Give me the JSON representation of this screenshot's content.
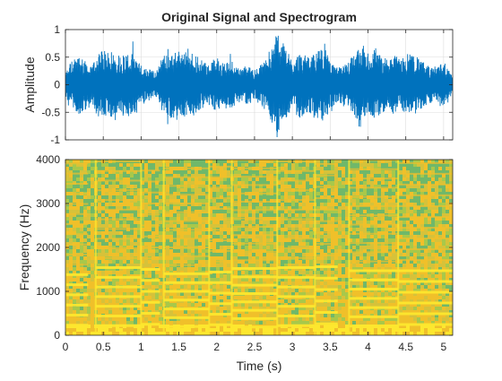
{
  "figure": {
    "title": "Original Signal and Spectrogram"
  },
  "chart_data": [
    {
      "type": "line",
      "title": "Original Signal and Spectrogram",
      "xlabel": "",
      "ylabel": "Amplitude",
      "xlim": [
        0,
        5.12
      ],
      "ylim": [
        -1,
        1
      ],
      "yticks": [
        -1,
        -0.5,
        0,
        0.5,
        1
      ],
      "ytick_labels": [
        "-1",
        "-0.5",
        "0",
        "0.5",
        "1"
      ],
      "grid": true,
      "line_color": "#0072BD",
      "envelope": {
        "t": [
          0.0,
          0.05,
          0.1,
          0.2,
          0.3,
          0.35,
          0.4,
          0.5,
          0.6,
          0.7,
          0.8,
          0.9,
          1.0,
          1.1,
          1.2,
          1.3,
          1.4,
          1.5,
          1.6,
          1.7,
          1.8,
          1.9,
          2.0,
          2.1,
          2.2,
          2.3,
          2.4,
          2.5,
          2.6,
          2.7,
          2.8,
          2.9,
          3.0,
          3.1,
          3.2,
          3.3,
          3.4,
          3.5,
          3.6,
          3.7,
          3.8,
          3.9,
          4.0,
          4.1,
          4.2,
          4.3,
          4.4,
          4.5,
          4.6,
          4.7,
          4.8,
          4.9,
          5.0,
          5.1
        ],
        "peak": [
          0.2,
          0.4,
          0.45,
          0.55,
          0.4,
          0.3,
          0.55,
          0.62,
          0.6,
          0.55,
          0.58,
          0.55,
          0.35,
          0.3,
          0.25,
          0.55,
          0.6,
          0.62,
          0.6,
          0.55,
          0.45,
          0.35,
          0.5,
          0.4,
          0.45,
          0.3,
          0.35,
          0.25,
          0.4,
          0.55,
          0.95,
          0.7,
          0.45,
          0.6,
          0.5,
          0.55,
          0.75,
          0.45,
          0.3,
          0.4,
          0.55,
          0.7,
          0.58,
          0.6,
          0.5,
          0.55,
          0.5,
          0.5,
          0.55,
          0.45,
          0.35,
          0.3,
          0.4,
          0.2
        ]
      }
    },
    {
      "type": "heatmap",
      "xlabel": "Time (s)",
      "ylabel": "Frequency (Hz)",
      "xlim": [
        0,
        5.12
      ],
      "ylim": [
        0,
        4000
      ],
      "xticks": [
        0,
        0.5,
        1,
        1.5,
        2,
        2.5,
        3,
        3.5,
        4,
        4.5,
        5
      ],
      "xtick_labels": [
        "0",
        "0.5",
        "1",
        "1.5",
        "2",
        "2.5",
        "3",
        "3.5",
        "4",
        "4.5",
        "5"
      ],
      "yticks": [
        0,
        1000,
        2000,
        3000,
        4000
      ],
      "ytick_labels": [
        "0",
        "1000",
        "2000",
        "3000",
        "4000"
      ],
      "colormap": [
        "#6fb86a",
        "#a8c84a",
        "#d6c23a",
        "#f0c02a",
        "#fde72e"
      ],
      "note_segments": [
        {
          "t0": 0.0,
          "t1": 0.3,
          "f0": 230
        },
        {
          "t0": 0.4,
          "t1": 1.0,
          "f0": 220
        },
        {
          "t0": 1.0,
          "t1": 1.25,
          "f0": 250
        },
        {
          "t0": 1.3,
          "t1": 1.9,
          "f0": 200
        },
        {
          "t0": 1.9,
          "t1": 2.2,
          "f0": 240
        },
        {
          "t0": 2.2,
          "t1": 2.8,
          "f0": 190
        },
        {
          "t0": 2.8,
          "t1": 3.3,
          "f0": 220
        },
        {
          "t0": 3.3,
          "t1": 3.6,
          "f0": 260
        },
        {
          "t0": 3.75,
          "t1": 4.4,
          "f0": 210
        },
        {
          "t0": 4.4,
          "t1": 5.12,
          "f0": 245
        }
      ]
    }
  ]
}
